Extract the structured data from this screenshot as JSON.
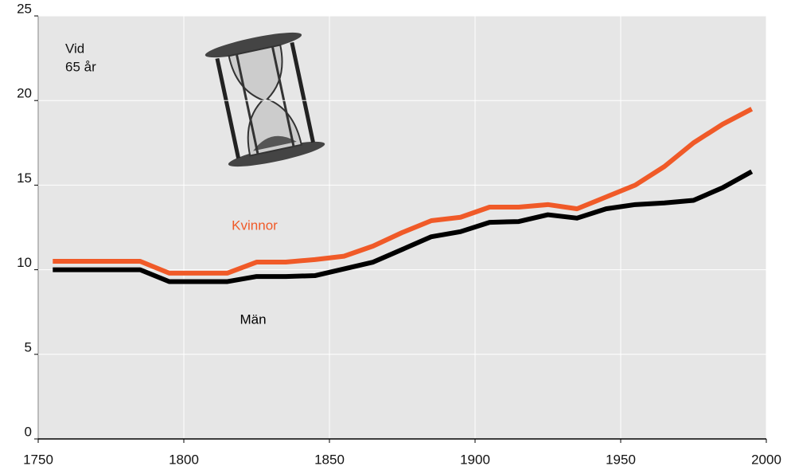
{
  "chart_data": {
    "type": "line",
    "annotation": [
      "Vid",
      "65 år"
    ],
    "x": [
      1755,
      1765,
      1775,
      1785,
      1795,
      1805,
      1815,
      1825,
      1835,
      1845,
      1855,
      1865,
      1875,
      1885,
      1895,
      1905,
      1915,
      1925,
      1935,
      1945,
      1955,
      1965,
      1975,
      1985,
      1995
    ],
    "series": [
      {
        "name": "Kvinnor",
        "color": "#f05a28",
        "values": [
          10.5,
          10.5,
          10.5,
          10.5,
          9.8,
          9.8,
          9.8,
          10.45,
          10.45,
          10.6,
          10.8,
          11.4,
          12.2,
          12.9,
          13.1,
          13.7,
          13.7,
          13.85,
          13.6,
          14.3,
          15.0,
          16.1,
          17.5,
          18.6,
          19.5
        ]
      },
      {
        "name": "Män",
        "color": "#000000",
        "values": [
          10.0,
          10.0,
          10.0,
          10.0,
          9.3,
          9.3,
          9.3,
          9.6,
          9.6,
          9.65,
          10.05,
          10.45,
          11.2,
          11.95,
          12.25,
          12.8,
          12.85,
          13.25,
          13.05,
          13.6,
          13.85,
          13.95,
          14.1,
          14.85,
          15.8
        ]
      }
    ],
    "xlim": [
      1750,
      2000
    ],
    "xticks": [
      1750,
      1800,
      1850,
      1900,
      1950,
      2000
    ],
    "ylim": [
      0,
      25
    ],
    "yticks": [
      0,
      5,
      10,
      15,
      20,
      25
    ],
    "grid": true
  }
}
